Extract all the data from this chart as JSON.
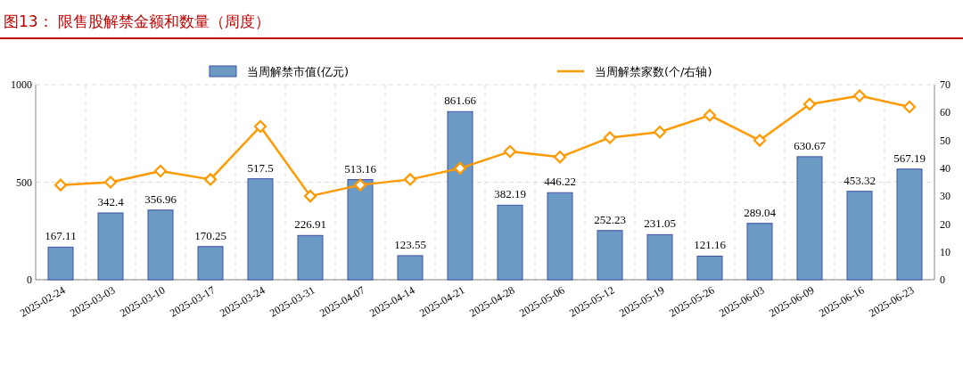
{
  "chart_data": {
    "type": "bar",
    "title": "图13：  限售股解禁金额和数量（周度）",
    "categories": [
      "2025-02-24",
      "2025-03-03",
      "2025-03-10",
      "2025-03-17",
      "2025-03-24",
      "2025-03-31",
      "2025-04-07",
      "2025-04-14",
      "2025-04-21",
      "2025-04-28",
      "2025-05-06",
      "2025-05-12",
      "2025-05-19",
      "2025-05-26",
      "2025-06-03",
      "2025-06-09",
      "2025-06-16",
      "2025-06-23"
    ],
    "series": [
      {
        "name": "当周解禁市值(亿元)",
        "color": "#6b9ac4",
        "values": [
          167.11,
          342.4,
          356.96,
          170.25,
          517.5,
          226.91,
          513.16,
          123.55,
          861.66,
          382.19,
          446.22,
          252.23,
          231.05,
          121.16,
          289.04,
          630.67,
          453.32,
          567.19
        ],
        "value_labels": [
          "167.11",
          "342.4",
          "356.96",
          "170.25",
          "517.5",
          "226.91",
          "513.16",
          "123.55",
          "861.66",
          "382.19",
          "446.22",
          "252.23",
          "231.05",
          "121.16",
          "289.04",
          "630.67",
          "453.32",
          "567.19"
        ]
      },
      {
        "name": "当周解禁家数(个/右轴)",
        "type": "line",
        "axis": "y2",
        "color": "#ff9900",
        "marker": "diamond",
        "values": [
          34,
          35,
          39,
          36,
          55,
          30,
          34,
          36,
          40,
          46,
          44,
          51,
          53,
          59,
          50,
          63,
          66,
          62
        ]
      }
    ],
    "ylim": [
      0,
      1000
    ],
    "yticks": [
      0,
      500,
      1000
    ],
    "y2lim": [
      0,
      70
    ],
    "y2ticks": [
      0,
      10,
      20,
      30,
      40,
      50,
      60,
      70
    ],
    "grid": true,
    "legend": "top"
  }
}
